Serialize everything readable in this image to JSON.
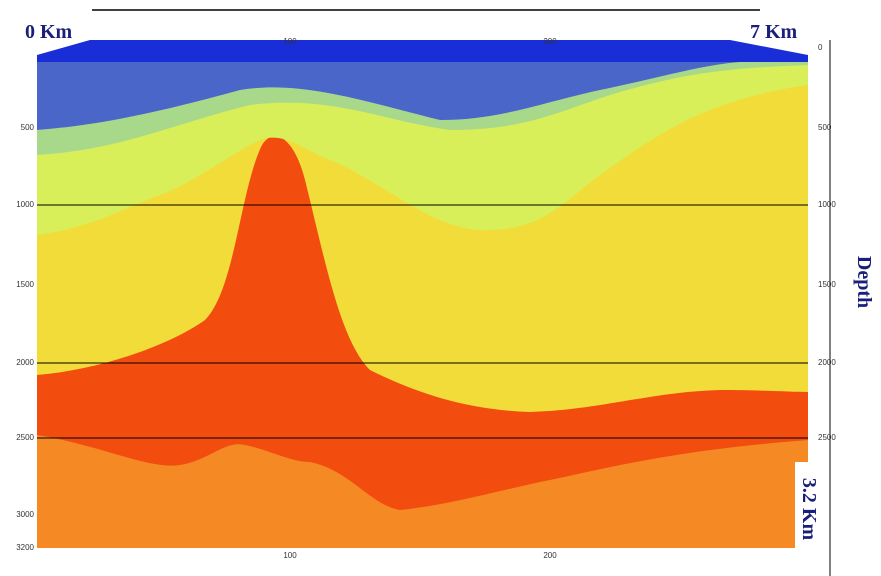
{
  "labels": {
    "left_distance": "0 Km",
    "right_distance": "7 Km",
    "depth_title": "Depth",
    "max_depth": "3.2 Km"
  },
  "left_ticks": [
    "500",
    "1000",
    "1500",
    "2000",
    "2500",
    "3000",
    "3200"
  ],
  "right_ticks": [
    "0",
    "500",
    "1000",
    "1500",
    "2000",
    "2500"
  ],
  "top_ticks": [
    "100",
    "200"
  ],
  "bottom_ticks": [
    "100",
    "200"
  ]
}
